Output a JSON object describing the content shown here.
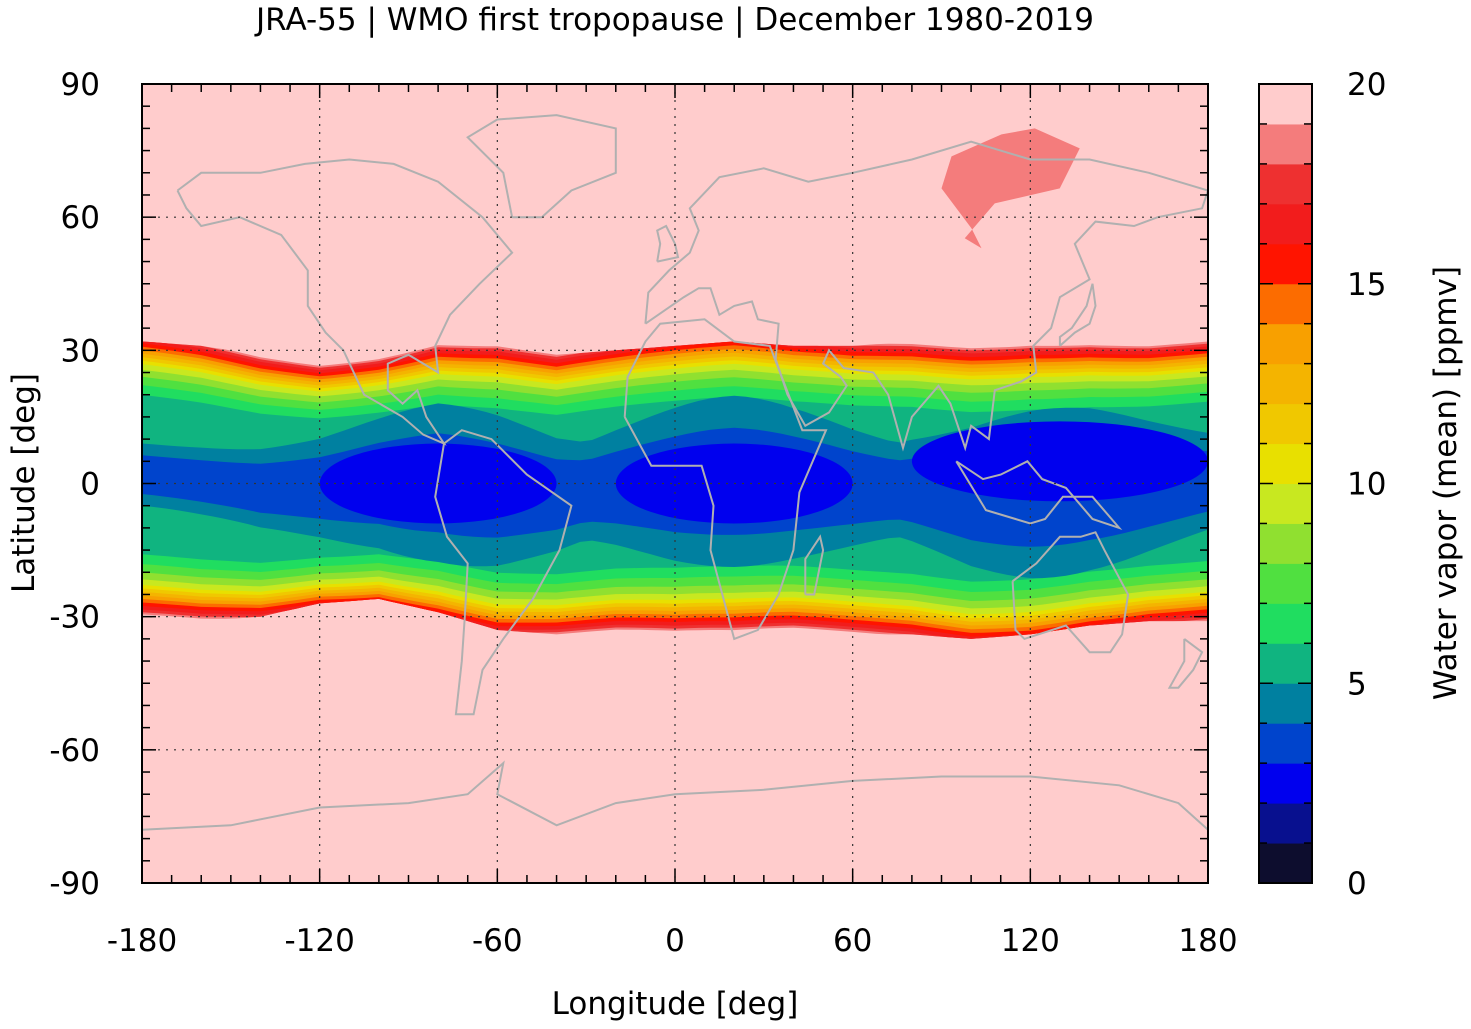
{
  "chart_data": {
    "type": "heatmap",
    "title": "JRA-55 | WMO first tropopause | December 1980-2019",
    "xlabel": "Longitude [deg]",
    "ylabel": "Latitude [deg]",
    "xlim": [
      -180,
      180
    ],
    "ylim": [
      -90,
      90
    ],
    "x_ticks": [
      -180,
      -120,
      -60,
      0,
      60,
      120,
      180
    ],
    "y_ticks": [
      -90,
      -60,
      -30,
      0,
      30,
      60,
      90
    ],
    "x_tick_labels": [
      "-180",
      "-120",
      "-60",
      "0",
      "60",
      "120",
      "180"
    ],
    "y_tick_labels": [
      "-90",
      "-60",
      "-30",
      "0",
      "30",
      "60",
      "90"
    ],
    "grid": true,
    "coastlines": true,
    "coastline_color": "#b0b0b0",
    "colorbar": {
      "label": "Water vapor (mean) [ppmv]",
      "range": [
        0,
        20
      ],
      "ticks": [
        0,
        5,
        10,
        15,
        20
      ],
      "tick_labels": [
        "0",
        "5",
        "10",
        "15",
        "20"
      ],
      "levels": [
        0,
        1,
        2,
        3,
        4,
        5,
        6,
        7,
        8,
        9,
        10,
        11,
        12,
        13,
        14,
        15,
        16,
        17,
        18,
        19,
        20
      ],
      "colors": [
        "#0d0d2e",
        "#08108f",
        "#0000ee",
        "#0044cc",
        "#0080a0",
        "#10b480",
        "#20dd60",
        "#50e040",
        "#90e030",
        "#c8e820",
        "#e8e000",
        "#f0c800",
        "#f4b400",
        "#f8a000",
        "#fc6c00",
        "#ff1400",
        "#f21c1c",
        "#ee3030",
        "#f47c7c",
        "#ffcccc"
      ]
    },
    "background_value_ppmv": 19.5,
    "tropical_band": {
      "description_values": {
        "north_edge_lat": [
          32,
          31,
          29,
          28,
          30,
          33,
          32,
          29,
          30,
          31,
          32,
          31,
          31,
          32,
          32,
          33,
          33,
          32,
          32
        ],
        "south_edge_lat": [
          -31,
          -31,
          -30,
          -27,
          -26,
          -29,
          -33,
          -34,
          -34,
          -35,
          -35,
          -34,
          -34,
          -34,
          -35,
          -34,
          -32,
          -31,
          -31
        ],
        "edge_lon": [
          -180,
          -160,
          -140,
          -120,
          -100,
          -80,
          -60,
          -40,
          -20,
          0,
          20,
          40,
          60,
          80,
          100,
          120,
          140,
          160,
          180
        ]
      },
      "minima_ppmv": [
        {
          "lon": -80,
          "lat": 0,
          "value": 2.5
        },
        {
          "lon": 20,
          "lat": 0,
          "value": 2.6
        },
        {
          "lon": 130,
          "lat": 5,
          "value": 2.4
        }
      ]
    },
    "anomaly_region": {
      "lon_range": [
        90,
        135
      ],
      "lat_range": [
        53,
        80
      ],
      "value_ppmv": 18.5
    }
  }
}
